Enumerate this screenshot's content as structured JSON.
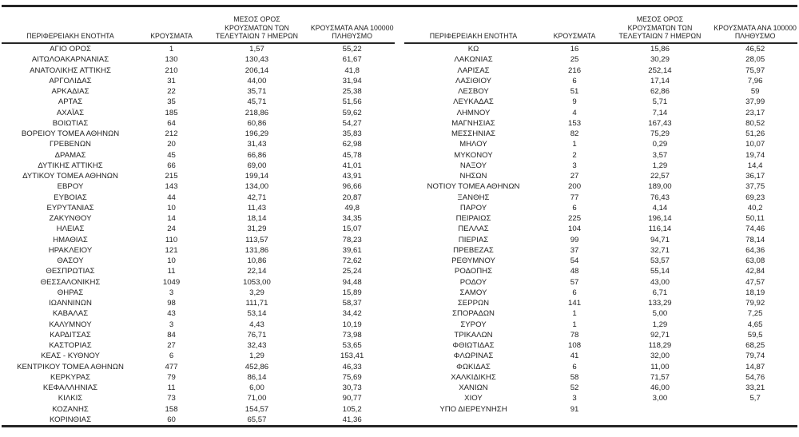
{
  "document": {
    "type": "regional-cases-table",
    "language": "el",
    "decimal_separator": ","
  },
  "colors": {
    "text": "#1f1f1f",
    "rule": "#262626",
    "background": "#ffffff"
  },
  "headers": {
    "region": "ΠΕΡΙΦΕΡΕΙΑΚΗ ΕΝΟΤΗΤΑ",
    "cases": "ΚΡΟΥΣΜΑΤΑ",
    "avg7": "ΜΕΣΟΣ ΟΡΟΣ\nΚΡΟΥΣΜΑΤΩΝ ΤΩΝ\nΤΕΛΕΥΤΑΙΩΝ 7 ΗΜΕΡΩΝ",
    "per100k": "ΚΡΟΥΣΜΑΤΑ ΑΝΑ 100000\nΠΛΗΘΥΣΜΟ"
  },
  "chart_data": {
    "type": "table",
    "title": "",
    "columns": [
      "ΠΕΡΙΦΕΡΕΙΑΚΗ ΕΝΟΤΗΤΑ",
      "ΚΡΟΥΣΜΑΤΑ",
      "ΜΕΣΟΣ ΟΡΟΣ ΚΡΟΥΣΜΑΤΩΝ ΤΩΝ ΤΕΛΕΥΤΑΙΩΝ 7 ΗΜΕΡΩΝ",
      "ΚΡΟΥΣΜΑΤΑ ΑΝΑ 100000 ΠΛΗΘΥΣΜΟ"
    ]
  },
  "tables": [
    {
      "rows": [
        [
          "ΑΓΙΟ ΟΡΟΣ",
          "1",
          "1,57",
          "55,22"
        ],
        [
          "ΑΙΤΩΛΟΑΚΑΡΝΑΝΙΑΣ",
          "130",
          "130,43",
          "61,67"
        ],
        [
          "ΑΝΑΤΟΛΙΚΗΣ ΑΤΤΙΚΗΣ",
          "210",
          "206,14",
          "41,8"
        ],
        [
          "ΑΡΓΟΛΙΔΑΣ",
          "31",
          "44,00",
          "31,94"
        ],
        [
          "ΑΡΚΑΔΙΑΣ",
          "22",
          "35,71",
          "25,38"
        ],
        [
          "ΑΡΤΑΣ",
          "35",
          "45,71",
          "51,56"
        ],
        [
          "ΑΧΑΪΑΣ",
          "185",
          "218,86",
          "59,62"
        ],
        [
          "ΒΟΙΩΤΙΑΣ",
          "64",
          "60,86",
          "54,27"
        ],
        [
          "ΒΟΡΕΙΟΥ ΤΟΜΕΑ ΑΘΗΝΩΝ",
          "212",
          "196,29",
          "35,83"
        ],
        [
          "ΓΡΕΒΕΝΩΝ",
          "20",
          "31,43",
          "62,98"
        ],
        [
          "ΔΡΑΜΑΣ",
          "45",
          "66,86",
          "45,78"
        ],
        [
          "ΔΥΤΙΚΗΣ ΑΤΤΙΚΗΣ",
          "66",
          "69,00",
          "41,01"
        ],
        [
          "ΔΥΤΙΚΟΥ ΤΟΜΕΑ ΑΘΗΝΩΝ",
          "215",
          "199,14",
          "43,91"
        ],
        [
          "ΕΒΡΟΥ",
          "143",
          "134,00",
          "96,66"
        ],
        [
          "ΕΥΒΟΙΑΣ",
          "44",
          "42,71",
          "20,87"
        ],
        [
          "ΕΥΡΥΤΑΝΙΑΣ",
          "10",
          "11,43",
          "49,8"
        ],
        [
          "ΖΑΚΥΝΘΟΥ",
          "14",
          "18,14",
          "34,35"
        ],
        [
          "ΗΛΕΙΑΣ",
          "24",
          "31,29",
          "15,07"
        ],
        [
          "ΗΜΑΘΙΑΣ",
          "110",
          "113,57",
          "78,23"
        ],
        [
          "ΗΡΑΚΛΕΙΟΥ",
          "121",
          "131,86",
          "39,61"
        ],
        [
          "ΘΑΣΟΥ",
          "10",
          "10,86",
          "72,62"
        ],
        [
          "ΘΕΣΠΡΩΤΙΑΣ",
          "11",
          "22,14",
          "25,24"
        ],
        [
          "ΘΕΣΣΑΛΟΝΙΚΗΣ",
          "1049",
          "1053,00",
          "94,48"
        ],
        [
          "ΘΗΡΑΣ",
          "3",
          "3,29",
          "15,89"
        ],
        [
          "ΙΩΑΝΝΙΝΩΝ",
          "98",
          "111,71",
          "58,37"
        ],
        [
          "ΚΑΒΑΛΑΣ",
          "43",
          "53,14",
          "34,42"
        ],
        [
          "ΚΑΛΥΜΝΟΥ",
          "3",
          "4,43",
          "10,19"
        ],
        [
          "ΚΑΡΔΙΤΣΑΣ",
          "84",
          "76,71",
          "73,98"
        ],
        [
          "ΚΑΣΤΟΡΙΑΣ",
          "27",
          "32,43",
          "53,65"
        ],
        [
          "ΚΕΑΣ - ΚΥΘΝΟΥ",
          "6",
          "1,29",
          "153,41"
        ],
        [
          "ΚΕΝΤΡΙΚΟΥ ΤΟΜΕΑ ΑΘΗΝΩΝ",
          "477",
          "452,86",
          "46,33"
        ],
        [
          "ΚΕΡΚΥΡΑΣ",
          "79",
          "86,14",
          "75,69"
        ],
        [
          "ΚΕΦΑΛΛΗΝΙΑΣ",
          "11",
          "6,00",
          "30,73"
        ],
        [
          "ΚΙΛΚΙΣ",
          "73",
          "71,00",
          "90,77"
        ],
        [
          "ΚΟΖΑΝΗΣ",
          "158",
          "154,57",
          "105,2"
        ],
        [
          "ΚΟΡΙΝΘΙΑΣ",
          "60",
          "65,57",
          "41,36"
        ]
      ]
    },
    {
      "rows": [
        [
          "ΚΩ",
          "16",
          "15,86",
          "46,52"
        ],
        [
          "ΛΑΚΩΝΙΑΣ",
          "25",
          "30,29",
          "28,05"
        ],
        [
          "ΛΑΡΙΣΑΣ",
          "216",
          "252,14",
          "75,97"
        ],
        [
          "ΛΑΣΙΘΙΟΥ",
          "6",
          "17,14",
          "7,96"
        ],
        [
          "ΛΕΣΒΟΥ",
          "51",
          "62,86",
          "59"
        ],
        [
          "ΛΕΥΚΑΔΑΣ",
          "9",
          "5,71",
          "37,99"
        ],
        [
          "ΛΗΜΝΟΥ",
          "4",
          "7,14",
          "23,17"
        ],
        [
          "ΜΑΓΝΗΣΙΑΣ",
          "153",
          "167,43",
          "80,52"
        ],
        [
          "ΜΕΣΣΗΝΙΑΣ",
          "82",
          "75,29",
          "51,26"
        ],
        [
          "ΜΗΛΟΥ",
          "1",
          "0,29",
          "10,07"
        ],
        [
          "ΜΥΚΟΝΟΥ",
          "2",
          "3,57",
          "19,74"
        ],
        [
          "ΝΑΞΟΥ",
          "3",
          "1,29",
          "14,4"
        ],
        [
          "ΝΗΣΩΝ",
          "27",
          "22,57",
          "36,17"
        ],
        [
          "ΝΟΤΙΟΥ ΤΟΜΕΑ ΑΘΗΝΩΝ",
          "200",
          "189,00",
          "37,75"
        ],
        [
          "ΞΑΝΘΗΣ",
          "77",
          "76,43",
          "69,23"
        ],
        [
          "ΠΑΡΟΥ",
          "6",
          "4,14",
          "40,2"
        ],
        [
          "ΠΕΙΡΑΙΩΣ",
          "225",
          "196,14",
          "50,11"
        ],
        [
          "ΠΕΛΛΑΣ",
          "104",
          "116,14",
          "74,46"
        ],
        [
          "ΠΙΕΡΙΑΣ",
          "99",
          "94,71",
          "78,14"
        ],
        [
          "ΠΡΕΒΕΖΑΣ",
          "37",
          "32,71",
          "64,36"
        ],
        [
          "ΡΕΘΥΜΝΟΥ",
          "54",
          "53,57",
          "63,08"
        ],
        [
          "ΡΟΔΟΠΗΣ",
          "48",
          "55,14",
          "42,84"
        ],
        [
          "ΡΟΔΟΥ",
          "57",
          "43,00",
          "47,57"
        ],
        [
          "ΣΑΜΟΥ",
          "6",
          "6,71",
          "18,19"
        ],
        [
          "ΣΕΡΡΩΝ",
          "141",
          "133,29",
          "79,92"
        ],
        [
          "ΣΠΟΡΑΔΩΝ",
          "1",
          "5,00",
          "7,25"
        ],
        [
          "ΣΥΡΟΥ",
          "1",
          "1,29",
          "4,65"
        ],
        [
          "ΤΡΙΚΑΛΩΝ",
          "78",
          "92,71",
          "59,5"
        ],
        [
          "ΦΘΙΩΤΙΔΑΣ",
          "108",
          "118,29",
          "68,25"
        ],
        [
          "ΦΛΩΡΙΝΑΣ",
          "41",
          "32,00",
          "79,74"
        ],
        [
          "ΦΩΚΙΔΑΣ",
          "6",
          "11,00",
          "14,87"
        ],
        [
          "ΧΑΛΚΙΔΙΚΗΣ",
          "58",
          "71,57",
          "54,76"
        ],
        [
          "ΧΑΝΙΩΝ",
          "52",
          "46,00",
          "33,21"
        ],
        [
          "ΧΙΟΥ",
          "3",
          "3,00",
          "5,7"
        ],
        [
          "ΥΠΟ ΔΙΕΡΕΥΝΗΣΗ",
          "91",
          "",
          ""
        ]
      ]
    }
  ]
}
